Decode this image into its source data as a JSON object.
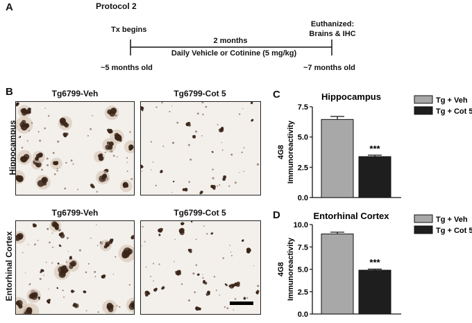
{
  "panel_a": {
    "letter": "A",
    "protocol": "Protocol 2",
    "tx_begins": "Tx begins",
    "duration": "2 months",
    "treatment": "Daily Vehicle or Cotinine (5 mg/kg)",
    "euthanized_line1": "Euthanized:",
    "euthanized_line2": "Brains & IHC",
    "start_age": "~5 months old",
    "end_age": "~7 months old"
  },
  "panel_b": {
    "letter": "B",
    "col_left": "Tg6799-Veh",
    "col_right": "Tg6799-Cot 5",
    "col_left_bottom": "Tg6799-Veh",
    "col_right_bottom": "Tg6799-Cot 5",
    "row_top": "Hippocampus",
    "row_bottom": "Entorhinal Cortex"
  },
  "colors": {
    "veh_bar": "#a8a8a8",
    "cot_bar": "#1e1e1e",
    "plaque": "#3a2418",
    "tissue": "#f3f0ec"
  },
  "chart_data": [
    {
      "panel": "C",
      "type": "bar",
      "title": "Hippocampus",
      "ylabel_line1": "4G8",
      "ylabel_line2": "Immunoreactivity",
      "ylim": [
        0,
        7.5
      ],
      "yticks": [
        "0.0",
        "2.5",
        "5.0",
        "7.5"
      ],
      "ytick_values": [
        0,
        2.5,
        5.0,
        7.5
      ],
      "categories": [
        "Tg + Veh",
        "Tg + Cot 5"
      ],
      "values": [
        6.45,
        3.38
      ],
      "errors": [
        0.25,
        0.12
      ],
      "significance": "***",
      "legend": [
        {
          "name": "Tg + Veh",
          "color": "#a8a8a8"
        },
        {
          "name": "Tg + Cot 5",
          "color": "#1e1e1e"
        }
      ],
      "legend_position": "top-right"
    },
    {
      "panel": "D",
      "type": "bar",
      "title": "Entorhinal Cortex",
      "ylabel_line1": "4G8",
      "ylabel_line2": "Immunoreactivity",
      "ylim": [
        0,
        10
      ],
      "yticks": [
        "0.0",
        "2.5",
        "5.0",
        "7.5",
        "10.0"
      ],
      "ytick_values": [
        0,
        2.5,
        5.0,
        7.5,
        10.0
      ],
      "categories": [
        "Tg + Veh",
        "Tg + Cot 5"
      ],
      "values": [
        8.95,
        4.9
      ],
      "errors": [
        0.2,
        0.12
      ],
      "significance": "***",
      "legend": [
        {
          "name": "Tg + Veh",
          "color": "#a8a8a8"
        },
        {
          "name": "Tg + Cot 5",
          "color": "#1e1e1e"
        }
      ],
      "legend_position": "top-right"
    }
  ]
}
